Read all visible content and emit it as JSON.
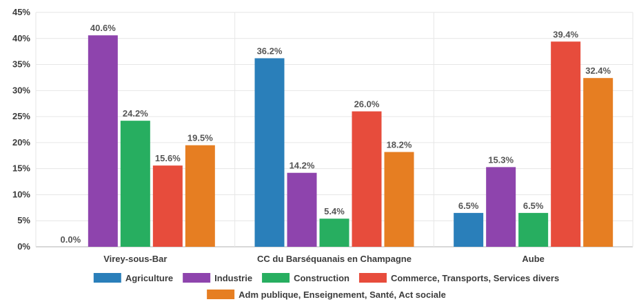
{
  "chart_data": {
    "type": "bar",
    "categories": [
      "Virey-sous-Bar",
      "CC du Barséquanais en Champagne",
      "Aube"
    ],
    "series": [
      {
        "name": "Agriculture",
        "color": "#2a7fba",
        "values": [
          0.0,
          36.2,
          6.5
        ]
      },
      {
        "name": "Industrie",
        "color": "#8e44ad",
        "values": [
          40.6,
          14.2,
          15.3
        ]
      },
      {
        "name": "Construction",
        "color": "#27ae60",
        "values": [
          24.2,
          5.4,
          6.5
        ]
      },
      {
        "name": "Commerce, Transports, Services divers",
        "color": "#e74c3c",
        "values": [
          15.6,
          26.0,
          39.4
        ]
      },
      {
        "name": "Adm publique, Enseignement, Santé, Act sociale",
        "color": "#e67e22",
        "values": [
          19.5,
          18.2,
          32.4
        ]
      }
    ],
    "ylim": [
      0,
      45
    ],
    "yticks": [
      0,
      5,
      10,
      15,
      20,
      25,
      30,
      35,
      40,
      45
    ],
    "value_suffix": "%",
    "grid": true,
    "legend_position": "bottom"
  }
}
